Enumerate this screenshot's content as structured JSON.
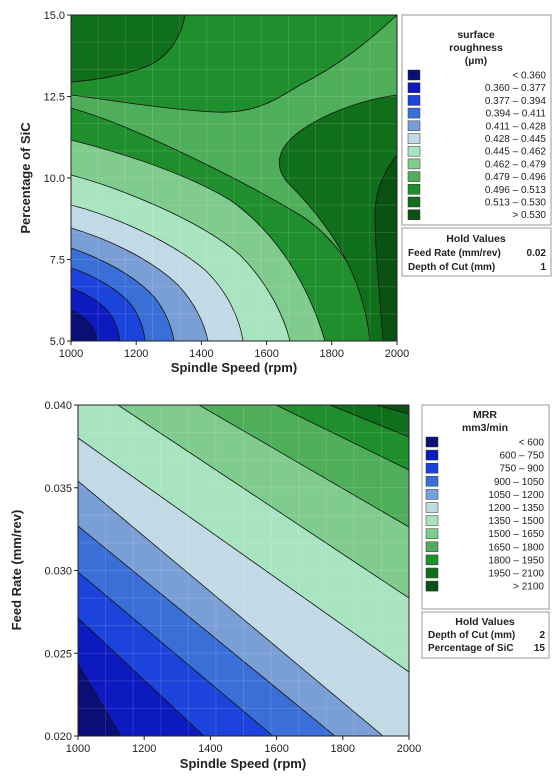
{
  "chart_data": [
    {
      "type": "contour",
      "xlabel": "Spindle Speed (rpm)",
      "ylabel": "Percentage of SiC",
      "xlim": [
        1000,
        2000
      ],
      "ylim": [
        5.0,
        15.0
      ],
      "x_ticks": [
        "1000",
        "1200",
        "1400",
        "1600",
        "1800",
        "2000"
      ],
      "x_tick_values": [
        1000,
        1200,
        1400,
        1600,
        1800,
        2000
      ],
      "y_ticks": [
        "5.0",
        "7.5",
        "10.0",
        "12.5",
        "15.0"
      ],
      "y_tick_values": [
        5.0,
        7.5,
        10.0,
        12.5,
        15.0
      ],
      "legend": {
        "title": [
          "surface",
          "roughness",
          "(µm)"
        ],
        "items": [
          {
            "label": "< 0.360",
            "color": "#0a0f78"
          },
          {
            "label": "0.360 – 0.377",
            "color": "#0c1ac0"
          },
          {
            "label": "0.377 – 0.394",
            "color": "#1c44dc"
          },
          {
            "label": "0.394 – 0.411",
            "color": "#3a6fd8"
          },
          {
            "label": "0.411 – 0.428",
            "color": "#7a9ed6"
          },
          {
            "label": "0.428 – 0.445",
            "color": "#c2dae6"
          },
          {
            "label": "0.445 – 0.462",
            "color": "#a9e4c0"
          },
          {
            "label": "0.462 – 0.479",
            "color": "#7fcc8d"
          },
          {
            "label": "0.479 – 0.496",
            "color": "#4fae5a"
          },
          {
            "label": "0.496 – 0.513",
            "color": "#1f8e2c"
          },
          {
            "label": "0.513 – 0.530",
            "color": "#0f6f1b"
          },
          {
            "label": "> 0.530",
            "color": "#0a5214"
          }
        ]
      },
      "hold_values": {
        "title": "Hold Values",
        "rows": [
          {
            "label": "Feed Rate (mm/rev)",
            "value": "0.02"
          },
          {
            "label": "Depth of Cut (mm)",
            "value": "1"
          }
        ]
      }
    },
    {
      "type": "contour",
      "xlabel": "Spindle Speed (rpm)",
      "ylabel": "Feed Rate (mm/rev)",
      "xlim": [
        1000,
        2000
      ],
      "ylim": [
        0.02,
        0.04
      ],
      "x_ticks": [
        "1000",
        "1200",
        "1400",
        "1600",
        "1800",
        "2000"
      ],
      "x_tick_values": [
        1000,
        1200,
        1400,
        1600,
        1800,
        2000
      ],
      "y_ticks": [
        "0.020",
        "0.025",
        "0.030",
        "0.035",
        "0.040"
      ],
      "y_tick_values": [
        0.02,
        0.025,
        0.03,
        0.035,
        0.04
      ],
      "legend": {
        "title": [
          "MRR",
          "mm3/min"
        ],
        "items": [
          {
            "label": "< 600",
            "color": "#0a0f78"
          },
          {
            "label": "600 – 750",
            "color": "#0c1ac0"
          },
          {
            "label": "750 – 900",
            "color": "#1c44dc"
          },
          {
            "label": "900 – 1050",
            "color": "#3a6fd8"
          },
          {
            "label": "1050 – 1200",
            "color": "#7a9ed6"
          },
          {
            "label": "1200 – 1350",
            "color": "#c2dae6"
          },
          {
            "label": "1350 – 1500",
            "color": "#a9e4c0"
          },
          {
            "label": "1500 – 1650",
            "color": "#7fcc8d"
          },
          {
            "label": "1650 – 1800",
            "color": "#4fae5a"
          },
          {
            "label": "1800 – 1950",
            "color": "#1f8e2c"
          },
          {
            "label": "1950 – 2100",
            "color": "#0f6f1b"
          },
          {
            "label": "> 2100",
            "color": "#0a5214"
          }
        ]
      },
      "hold_values": {
        "title": "Hold Values",
        "rows": [
          {
            "label": "Depth of Cut (mm)",
            "value": "2"
          },
          {
            "label": "Percentage of SiC",
            "value": "15"
          }
        ]
      }
    }
  ]
}
